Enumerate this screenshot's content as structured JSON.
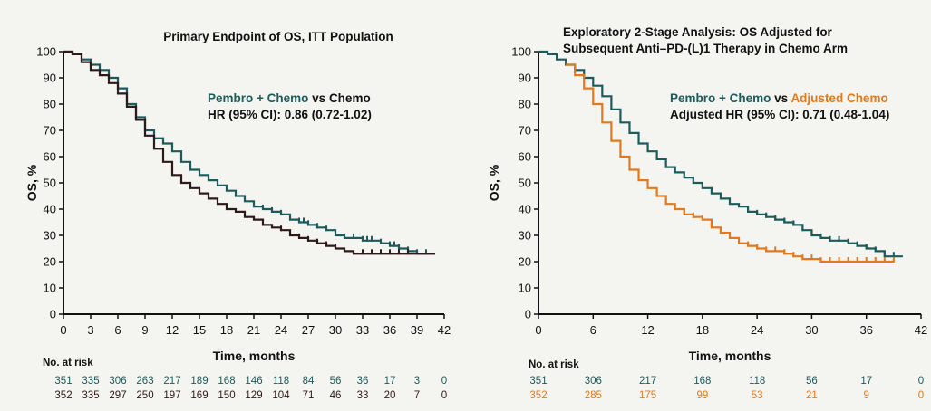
{
  "colors": {
    "pembro": "#1c5b5b",
    "chemo": "#2e1a1a",
    "adjusted_chemo": "#e07a1e",
    "axis": "#111111"
  },
  "chart_data": [
    {
      "type": "line",
      "subtype": "kaplan-meier",
      "title": "Primary Endpoint of OS, ITT Population",
      "subtitle": "",
      "xlabel": "Time, months",
      "ylabel": "OS, %",
      "xlim": [
        0,
        42
      ],
      "ylim": [
        0,
        100
      ],
      "xticks": [
        0,
        3,
        6,
        9,
        12,
        15,
        18,
        21,
        24,
        27,
        30,
        33,
        36,
        39,
        42
      ],
      "yticks": [
        0,
        10,
        20,
        30,
        40,
        50,
        60,
        70,
        80,
        90,
        100
      ],
      "grid": false,
      "annotation": {
        "comparison_a": "Pembro + Chemo",
        "comparison_vs": "vs",
        "comparison_b": "Chemo",
        "hr_line": "HR (95% CI): 0.86 (0.72-1.02)"
      },
      "series": [
        {
          "name": "Pembro + Chemo",
          "color_key": "pembro",
          "x": [
            0,
            1,
            2,
            3,
            4,
            5,
            6,
            7,
            8,
            9,
            10,
            11,
            12,
            13,
            14,
            15,
            16,
            17,
            18,
            19,
            20,
            21,
            22,
            23,
            24,
            25,
            26,
            27,
            28,
            29,
            30,
            31,
            32,
            33,
            34,
            35,
            36,
            37,
            38,
            39,
            40,
            41
          ],
          "y": [
            100,
            99,
            97,
            95,
            93,
            90,
            86,
            80,
            75,
            70,
            67,
            65,
            62,
            58,
            55,
            53,
            51,
            49,
            47,
            45,
            43,
            41,
            40,
            39,
            38,
            36,
            35,
            34,
            33,
            32,
            30,
            29,
            29,
            28,
            28,
            27,
            26,
            25,
            24,
            23,
            23,
            23
          ],
          "censor_x": [
            22,
            23,
            24,
            25,
            26,
            26.5,
            27,
            28,
            29,
            30,
            31,
            32,
            33,
            33.5,
            34,
            35,
            36,
            36.5,
            37,
            38,
            39,
            40
          ]
        },
        {
          "name": "Chemo",
          "color_key": "chemo",
          "x": [
            0,
            1,
            2,
            3,
            4,
            5,
            6,
            7,
            8,
            9,
            10,
            11,
            12,
            13,
            14,
            15,
            16,
            17,
            18,
            19,
            20,
            21,
            22,
            23,
            24,
            25,
            26,
            27,
            28,
            29,
            30,
            31,
            32,
            33,
            34,
            35,
            36,
            37,
            38,
            39,
            40,
            41
          ],
          "y": [
            100,
            99,
            96,
            93,
            91,
            88,
            84,
            79,
            74,
            68,
            63,
            58,
            53,
            50,
            48,
            46,
            44,
            42,
            40,
            39,
            37,
            36,
            34,
            33,
            32,
            30,
            29,
            28,
            27,
            26,
            25,
            24,
            23,
            23,
            23,
            23,
            23,
            23,
            23,
            23,
            23,
            23
          ],
          "censor_x": [
            24,
            25,
            26,
            27,
            28,
            29,
            30,
            33,
            34,
            35,
            36,
            37,
            38
          ]
        }
      ],
      "risk_table": {
        "label": "No. at risk",
        "timepoints": [
          0,
          3,
          6,
          9,
          12,
          15,
          18,
          21,
          24,
          27,
          30,
          33,
          36,
          39,
          42
        ],
        "rows": [
          {
            "color_key": "pembro",
            "values": [
              "351",
              "335",
              "306",
              "263",
              "217",
              "189",
              "168",
              "146",
              "118",
              "84",
              "56",
              "36",
              "17",
              "3",
              "0"
            ]
          },
          {
            "color_key": "chemo",
            "values": [
              "352",
              "335",
              "297",
              "250",
              "197",
              "169",
              "150",
              "129",
              "104",
              "71",
              "46",
              "33",
              "20",
              "7",
              "0"
            ]
          }
        ]
      }
    },
    {
      "type": "line",
      "subtype": "kaplan-meier",
      "title": "Exploratory 2-Stage Analysis: OS Adjusted for",
      "subtitle": "Subsequent Anti–PD-(L)1 Therapy in Chemo Arm",
      "xlabel": "Time, months",
      "ylabel": "OS, %",
      "xlim": [
        0,
        42
      ],
      "ylim": [
        0,
        100
      ],
      "xticks": [
        0,
        6,
        12,
        18,
        24,
        30,
        36,
        42
      ],
      "yticks": [
        0,
        10,
        20,
        30,
        40,
        50,
        60,
        70,
        80,
        90,
        100
      ],
      "grid": false,
      "annotation": {
        "comparison_a": "Pembro + Chemo",
        "comparison_vs": "vs",
        "comparison_b": "Adjusted Chemo",
        "hr_line": "Adjusted HR (95% CI): 0.71 (0.48-1.04)"
      },
      "series": [
        {
          "name": "Pembro + Chemo",
          "color_key": "pembro",
          "x": [
            0,
            1,
            2,
            3,
            4,
            5,
            6,
            7,
            8,
            9,
            10,
            11,
            12,
            13,
            14,
            15,
            16,
            17,
            18,
            19,
            20,
            21,
            22,
            23,
            24,
            25,
            26,
            27,
            28,
            29,
            30,
            31,
            32,
            33,
            34,
            35,
            36,
            37,
            38,
            39,
            40
          ],
          "y": [
            100,
            99,
            97,
            95,
            93,
            90,
            87,
            83,
            78,
            73,
            69,
            65,
            62,
            59,
            56,
            54,
            52,
            50,
            48,
            46,
            44,
            42,
            41,
            39,
            38,
            37,
            36,
            35,
            34,
            32,
            30,
            29,
            28,
            28,
            27,
            26,
            25,
            24,
            22,
            22,
            22
          ],
          "censor_x": [
            24,
            25,
            26,
            27,
            28,
            29,
            30,
            31,
            32,
            33,
            34,
            35,
            36,
            37,
            38,
            39
          ]
        },
        {
          "name": "Adjusted Chemo",
          "color_key": "adjusted_chemo",
          "x": [
            3,
            4,
            5,
            6,
            7,
            8,
            9,
            10,
            11,
            12,
            13,
            14,
            15,
            16,
            17,
            18,
            19,
            20,
            21,
            22,
            23,
            24,
            25,
            26,
            27,
            28,
            29,
            30,
            31,
            32,
            33,
            34,
            35,
            36,
            37,
            38,
            39
          ],
          "y": [
            95,
            91,
            86,
            80,
            73,
            66,
            60,
            55,
            51,
            48,
            45,
            42,
            40,
            38,
            37,
            36,
            33,
            31,
            29,
            27,
            26,
            25,
            24,
            24,
            23,
            22,
            21,
            21,
            20,
            20,
            20,
            20,
            20,
            20,
            20,
            20,
            20
          ],
          "censor_x": [
            16,
            17,
            18,
            19,
            20,
            21,
            22,
            23,
            24,
            25,
            26,
            27,
            28,
            29,
            30,
            31,
            32,
            33,
            34,
            35,
            36,
            37,
            38,
            39
          ]
        }
      ],
      "risk_table": {
        "label": "No. at risk",
        "timepoints": [
          0,
          6,
          12,
          18,
          24,
          30,
          36,
          42
        ],
        "rows": [
          {
            "color_key": "pembro",
            "values": [
              "351",
              "306",
              "217",
              "168",
              "118",
              "56",
              "17",
              "0"
            ]
          },
          {
            "color_key": "adjusted_chemo",
            "values": [
              "352",
              "285",
              "175",
              "99",
              "53",
              "21",
              "9",
              "0"
            ]
          }
        ]
      }
    }
  ]
}
